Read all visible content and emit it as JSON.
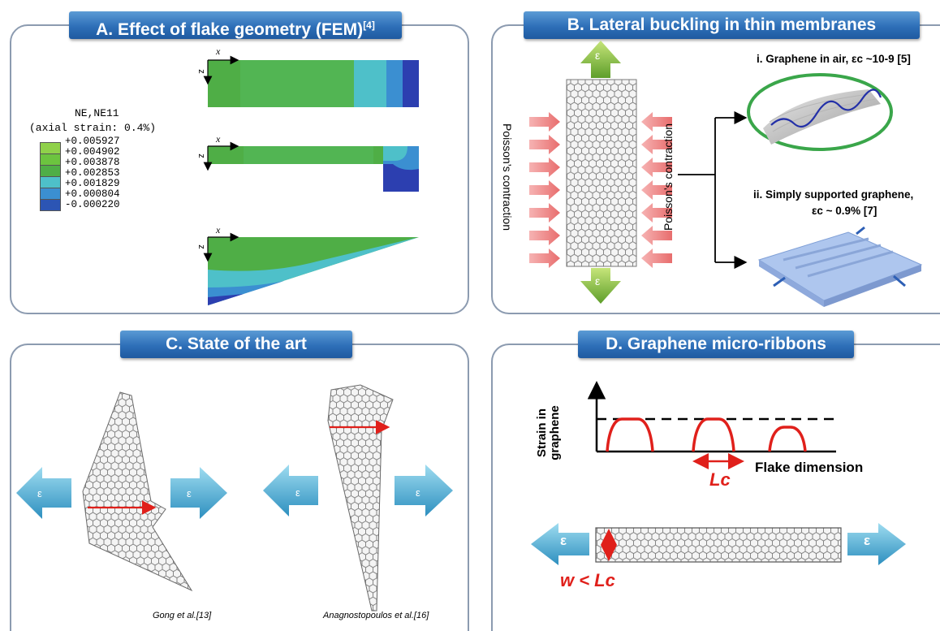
{
  "panelA": {
    "title": "A. Effect of flake geometry (FEM)",
    "ref": "[4]",
    "legend_title_1": "NE,NE11",
    "legend_title_2": "(axial strain: 0.4%)",
    "legend_values": [
      "+0.005927",
      "+0.004902",
      "+0.003878",
      "+0.002853",
      "+0.001829",
      "+0.000804",
      "-0.000220"
    ],
    "legend_colors": [
      "#8fd14a",
      "#6cc43f",
      "#4fae46",
      "#4ec0c9",
      "#3b8fd1",
      "#2c55b4",
      "#1d2f9a"
    ],
    "axis_x": "x",
    "axis_z": "z"
  },
  "panelB": {
    "title": "B.  Lateral buckling in thin membranes",
    "epsilon": "ε",
    "poisson_left": "Poisson’s contraction",
    "poisson_right": "Poisson’s contraction",
    "case_i": "i. Graphene in air, εc ~10-9 [5]",
    "case_ii_1": "ii. Simply supported graphene,",
    "case_ii_2": "εc ~ 0.9% [7]"
  },
  "panelC": {
    "title": "C.  State of the art",
    "epsilon": "ε",
    "cite_left": "Gong et al.[13]",
    "cite_right": "Anagnostopoulos et al.[16]"
  },
  "panelD": {
    "title": "D.  Graphene micro-ribbons",
    "y_label_1": "Strain in",
    "y_label_2": "graphene",
    "x_label": "Flake dimension",
    "lc_label": "Lc",
    "w_label": "w < Lc",
    "epsilon": "ε"
  },
  "colors": {
    "banner": "#2e6fb8",
    "panel_border": "#8c9bb0",
    "arrow_cyan": "#4fb3d9",
    "arrow_green": "#8cc63f",
    "arrow_pink": "#f08a8a",
    "red": "#e0201b"
  }
}
